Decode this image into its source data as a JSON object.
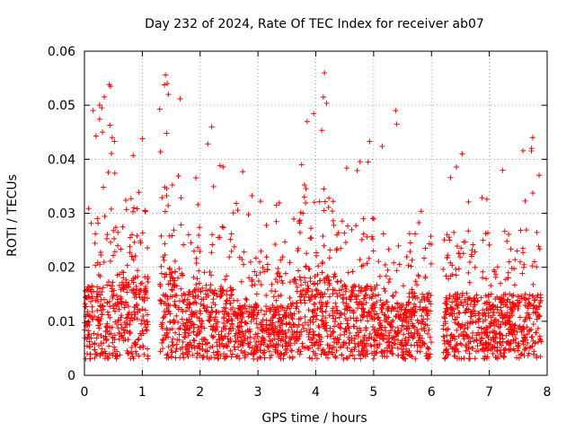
{
  "chart_data": {
    "type": "scatter",
    "title": "Day 232 of 2024, Rate Of TEC Index for receiver ab07",
    "xlabel": "GPS time / hours",
    "ylabel": "ROTI / TECUs",
    "xlim": [
      0,
      8
    ],
    "ylim": [
      0,
      0.06
    ],
    "xticks": [
      0,
      1,
      2,
      3,
      4,
      5,
      6,
      7,
      8
    ],
    "xtick_labels": [
      "0",
      "1",
      "2",
      "3",
      "4",
      "5",
      "6",
      "7",
      "8"
    ],
    "yticks": [
      0,
      0.01,
      0.02,
      0.03,
      0.04,
      0.05,
      0.06
    ],
    "ytick_labels": [
      "0",
      "0.01",
      "0.02",
      "0.03",
      "0.04",
      "0.05",
      "0.06"
    ],
    "grid": true,
    "marker": "plus",
    "color": "#ff0000",
    "series": [
      {
        "name": "ROTI",
        "density_profile": [
          {
            "x_from": 0.0,
            "x_to": 0.6,
            "base": 0.009,
            "spread": 0.008,
            "max": 0.054
          },
          {
            "x_from": 0.6,
            "x_to": 1.1,
            "base": 0.01,
            "spread": 0.009,
            "max": 0.044
          },
          {
            "x_from": 1.3,
            "x_to": 1.7,
            "base": 0.011,
            "spread": 0.01,
            "max": 0.056
          },
          {
            "x_from": 1.7,
            "x_to": 2.6,
            "base": 0.009,
            "spread": 0.007,
            "max": 0.046
          },
          {
            "x_from": 2.6,
            "x_to": 3.6,
            "base": 0.007,
            "spread": 0.005,
            "max": 0.04
          },
          {
            "x_from": 3.6,
            "x_to": 4.4,
            "base": 0.01,
            "spread": 0.009,
            "max": 0.056
          },
          {
            "x_from": 4.4,
            "x_to": 5.0,
            "base": 0.009,
            "spread": 0.008,
            "max": 0.044
          },
          {
            "x_from": 5.0,
            "x_to": 5.6,
            "base": 0.007,
            "spread": 0.006,
            "max": 0.049
          },
          {
            "x_from": 5.6,
            "x_to": 6.0,
            "base": 0.008,
            "spread": 0.007,
            "max": 0.034
          },
          {
            "x_from": 6.2,
            "x_to": 7.0,
            "base": 0.008,
            "spread": 0.007,
            "max": 0.041
          },
          {
            "x_from": 7.0,
            "x_to": 7.9,
            "base": 0.008,
            "spread": 0.007,
            "max": 0.044
          }
        ],
        "highlights": [
          {
            "x": 0.43,
            "y": 0.0538
          },
          {
            "x": 0.45,
            "y": 0.0535
          },
          {
            "x": 0.15,
            "y": 0.049
          },
          {
            "x": 0.3,
            "y": 0.0495
          },
          {
            "x": 1.4,
            "y": 0.0556
          },
          {
            "x": 1.43,
            "y": 0.054
          },
          {
            "x": 1.45,
            "y": 0.052
          },
          {
            "x": 2.2,
            "y": 0.046
          },
          {
            "x": 4.15,
            "y": 0.056
          },
          {
            "x": 4.13,
            "y": 0.0515
          },
          {
            "x": 5.38,
            "y": 0.049
          },
          {
            "x": 5.4,
            "y": 0.0465
          },
          {
            "x": 3.85,
            "y": 0.047
          },
          {
            "x": 4.93,
            "y": 0.0433
          },
          {
            "x": 7.75,
            "y": 0.044
          },
          {
            "x": 7.73,
            "y": 0.042
          },
          {
            "x": 6.53,
            "y": 0.041
          },
          {
            "x": 1.0,
            "y": 0.0438
          },
          {
            "x": 0.48,
            "y": 0.044
          },
          {
            "x": 0.2,
            "y": 0.0443
          }
        ]
      }
    ]
  }
}
